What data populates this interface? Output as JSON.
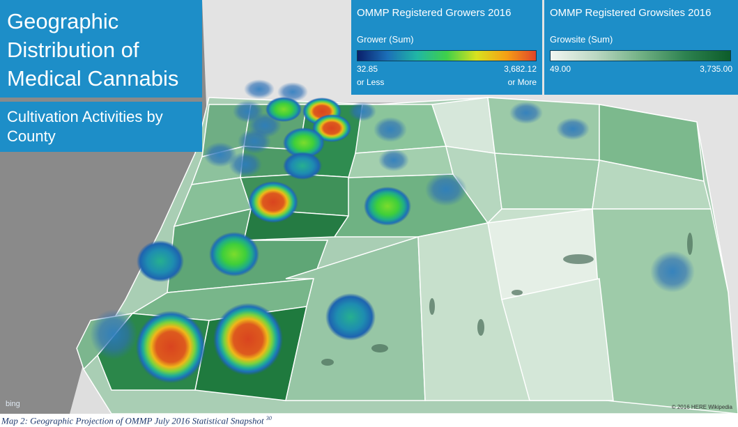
{
  "title": "Geographic Distribution of Medical Cannabis",
  "subtitle": "Cultivation Activities by County",
  "legend_growers": {
    "title": "OMMP Registered Growers 2016",
    "field": "Grower (Sum)",
    "min_value": "32.85",
    "max_value": "3,682.12",
    "min_label": "or Less",
    "max_label": "or More"
  },
  "legend_growsites": {
    "title": "OMMP Registered Growsites 2016",
    "field": "Growsite (Sum)",
    "min_value": "49.00",
    "max_value": "3,735.00"
  },
  "map_provider": "bing",
  "credit": "© 2016 HERE   Wikipedia",
  "caption": {
    "text": "Map 2: Geographic Projection of OMMP July 2016 Statistical Snapshot ",
    "footnote": "30"
  },
  "colors": {
    "panel_blue": "#1d8ec8",
    "ocean_gray": "#8a8a8a",
    "county_borders": "#ffffff"
  }
}
